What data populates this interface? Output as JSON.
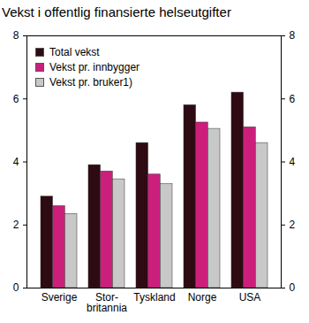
{
  "chart_data": {
    "type": "bar",
    "title": "Vekst i offentlig finansierte helseutgifter",
    "categories": [
      "Sverige",
      "Stor-\nbritannia",
      "Tyskland",
      "Norge",
      "USA"
    ],
    "series": [
      {
        "name": "Total vekst",
        "color": "#2e0a12",
        "values": [
          2.9,
          3.9,
          4.6,
          5.8,
          6.2
        ]
      },
      {
        "name": "Vekst pr. innbygger",
        "color": "#cc1f7c",
        "values": [
          2.6,
          3.7,
          3.6,
          5.25,
          5.1
        ]
      },
      {
        "name": "Vekst pr. bruker1)",
        "color": "#c8c8c8",
        "values": [
          2.35,
          3.45,
          3.3,
          5.05,
          4.6
        ]
      }
    ],
    "ylim": [
      0,
      8
    ],
    "yticks": [
      0,
      2,
      4,
      6,
      8
    ],
    "grid": false,
    "legend": "top-left"
  }
}
